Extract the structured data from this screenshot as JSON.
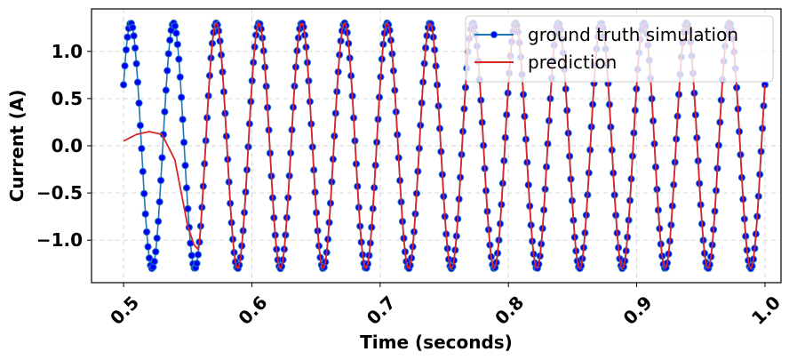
{
  "chart_data": {
    "type": "line",
    "title": "",
    "xlabel": "Time (seconds)",
    "ylabel": "Current (A)",
    "xlim": [
      0.475,
      1.0125
    ],
    "ylim": [
      -1.45,
      1.45
    ],
    "x_ticks": [
      0.5,
      0.6,
      0.7,
      0.8,
      0.9,
      1.0
    ],
    "x_tick_labels": [
      "0.5",
      "0.6",
      "0.7",
      "0.8",
      "0.9",
      "1.0"
    ],
    "y_ticks": [
      -1.0,
      -0.5,
      0.0,
      0.5,
      1.0
    ],
    "y_tick_labels": [
      "−1.0",
      "−0.5",
      "0.0",
      "0.5",
      "1.0"
    ],
    "grid": true,
    "legend_position": "top-right",
    "x_sampling": {
      "start": 0.5,
      "end": 1.0,
      "count": 500
    },
    "series": [
      {
        "name": "ground truth simulation",
        "style": "line-with-markers",
        "color": "#1f77b4",
        "marker_color": "#0000ff",
        "model": {
          "amplitude": 1.3,
          "frequency_hz": 30,
          "phase_rad": 0.52
        }
      },
      {
        "name": "prediction",
        "style": "line",
        "color": "#d62728",
        "model": {
          "amplitude": 1.3,
          "frequency_hz": 30,
          "phase_rad": 0.52
        },
        "initial_transient": {
          "x": [
            0.5,
            0.51,
            0.52,
            0.53,
            0.54,
            0.545,
            0.55,
            0.555,
            0.5583
          ],
          "y": [
            0.05,
            0.12,
            0.15,
            0.12,
            -0.15,
            -0.5,
            -0.85,
            -1.05,
            -1.1
          ]
        }
      }
    ]
  }
}
